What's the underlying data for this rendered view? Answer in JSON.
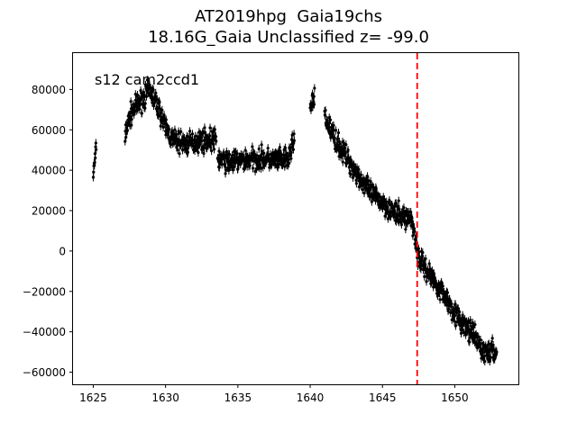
{
  "chart_data": {
    "type": "scatter",
    "title": "AT2019hpg  Gaia19chs",
    "subtitle": "18.16G_Gaia Unclassified z= -99.0",
    "annotation": "s12 cam2ccd1",
    "xlabel": "",
    "ylabel": "",
    "xlim": [
      1623.6,
      1654.4
    ],
    "ylim": [
      -66000,
      98000
    ],
    "x_ticks": [
      1625,
      1630,
      1635,
      1640,
      1645,
      1650
    ],
    "y_ticks": [
      -60000,
      -40000,
      -20000,
      0,
      20000,
      40000,
      60000,
      80000
    ],
    "marker_color": "#000000",
    "error_bars": true,
    "vline": {
      "x": 1647.4,
      "color": "#ff0000",
      "style": "dashed"
    },
    "segments": [
      {
        "x": [
          1625.0,
          1625.2
        ],
        "y": [
          38000,
          50000
        ]
      },
      {
        "x": [
          1627.2,
          1627.6,
          1628.0,
          1628.5,
          1628.9,
          1629.3,
          1629.8
        ],
        "y": [
          58000,
          68000,
          72000,
          76000,
          80000,
          74000,
          66000
        ]
      },
      {
        "x": [
          1629.8,
          1630.5,
          1631.5,
          1632.5,
          1633.5
        ],
        "y": [
          64000,
          55000,
          53000,
          55000,
          55000
        ]
      },
      {
        "x": [
          1633.6,
          1634.3,
          1635.5,
          1636.5,
          1637.5,
          1638.5
        ],
        "y": [
          46000,
          44000,
          45000,
          46000,
          45000,
          45000
        ]
      },
      {
        "x": [
          1638.5,
          1638.9
        ],
        "y": [
          45000,
          57000
        ]
      },
      {
        "x": [
          1640.0,
          1640.3
        ],
        "y": [
          70000,
          76000
        ]
      },
      {
        "x": [
          1641.0,
          1642.0,
          1643.0,
          1644.0,
          1645.0,
          1646.0,
          1647.0,
          1647.4
        ],
        "y": [
          66000,
          52000,
          41000,
          30000,
          24000,
          18000,
          16000,
          2000
        ]
      },
      {
        "x": [
          1647.4,
          1648.3,
          1649.3,
          1650.3,
          1651.3,
          1652.0,
          1652.9
        ],
        "y": [
          -2000,
          -12000,
          -22000,
          -34000,
          -42000,
          -50000,
          -50000
        ]
      }
    ]
  }
}
